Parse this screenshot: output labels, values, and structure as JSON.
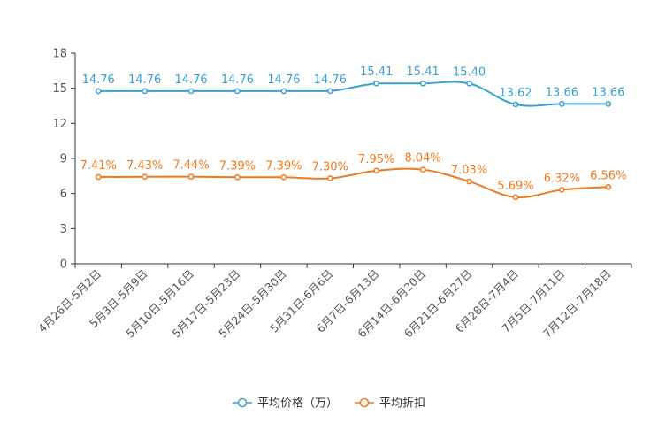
{
  "chart_data": {
    "type": "line",
    "title": "",
    "xlabel": "",
    "ylabel": "",
    "ylim": [
      0,
      18
    ],
    "yticks": [
      0,
      3,
      6,
      9,
      12,
      15,
      18
    ],
    "categories": [
      "4月26日-5月2日",
      "5月3日-5月9日",
      "5月10日-5月16日",
      "5月17日-5月23日",
      "5月24日-5月30日",
      "5月31日-6月6日",
      "6月7日-6月13日",
      "6月14日-6月20日",
      "6月21日-6月27日",
      "6月28日-7月4日",
      "7月5日-7月11日",
      "7月12日-7月18日"
    ],
    "series": [
      {
        "name": "平均价格（万）",
        "color": "#3aa0d0",
        "values": [
          14.76,
          14.76,
          14.76,
          14.76,
          14.76,
          14.76,
          15.41,
          15.41,
          15.4,
          13.62,
          13.66,
          13.66
        ],
        "labels": [
          "14.76",
          "14.76",
          "14.76",
          "14.76",
          "14.76",
          "14.76",
          "15.41",
          "15.41",
          "15.40",
          "13.62",
          "13.66",
          "13.66"
        ]
      },
      {
        "name": "平均折扣",
        "color": "#f07a1c",
        "values": [
          7.41,
          7.43,
          7.44,
          7.39,
          7.39,
          7.3,
          7.95,
          8.04,
          7.03,
          5.69,
          6.32,
          6.56
        ],
        "labels": [
          "7.41%",
          "7.43%",
          "7.44%",
          "7.39%",
          "7.39%",
          "7.30%",
          "7.95%",
          "8.04%",
          "7.03%",
          "5.69%",
          "6.32%",
          "6.56%"
        ]
      }
    ],
    "legend_position": "bottom-center",
    "grid": false
  }
}
